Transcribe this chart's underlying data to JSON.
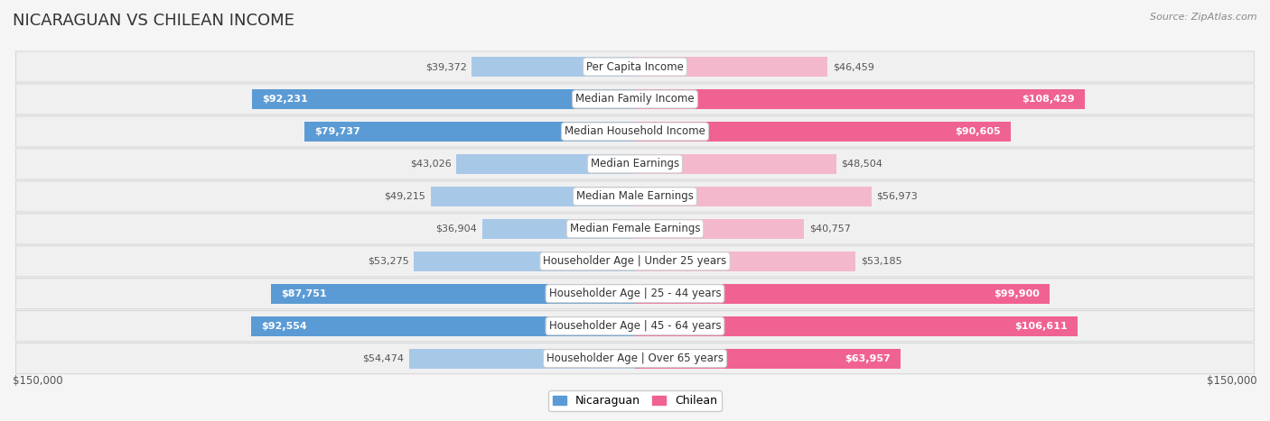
{
  "title": "NICARAGUAN VS CHILEAN INCOME",
  "source": "Source: ZipAtlas.com",
  "categories": [
    "Per Capita Income",
    "Median Family Income",
    "Median Household Income",
    "Median Earnings",
    "Median Male Earnings",
    "Median Female Earnings",
    "Householder Age | Under 25 years",
    "Householder Age | 25 - 44 years",
    "Householder Age | 45 - 64 years",
    "Householder Age | Over 65 years"
  ],
  "nicaraguan_values": [
    39372,
    92231,
    79737,
    43026,
    49215,
    36904,
    53275,
    87751,
    92554,
    54474
  ],
  "chilean_values": [
    46459,
    108429,
    90605,
    48504,
    56973,
    40757,
    53185,
    99900,
    106611,
    63957
  ],
  "nicaraguan_labels": [
    "$39,372",
    "$92,231",
    "$79,737",
    "$43,026",
    "$49,215",
    "$36,904",
    "$53,275",
    "$87,751",
    "$92,554",
    "$54,474"
  ],
  "chilean_labels": [
    "$46,459",
    "$108,429",
    "$90,605",
    "$48,504",
    "$56,973",
    "$40,757",
    "$53,185",
    "$99,900",
    "$106,611",
    "$63,957"
  ],
  "max_value": 150000,
  "nicaraguan_color_dark": "#5b9bd5",
  "nicaraguan_color_light": "#a8c8e8",
  "chilean_color_dark": "#f06292",
  "chilean_color_light": "#f4b8cc",
  "nic_threshold": 62000,
  "chil_threshold": 62000,
  "bar_height": 0.62,
  "background_color": "#f5f5f5",
  "row_bg_color": "#efefef",
  "title_fontsize": 13,
  "label_fontsize": 8.5,
  "value_fontsize": 8.0,
  "legend_fontsize": 9,
  "axis_label_fontsize": 8.5
}
